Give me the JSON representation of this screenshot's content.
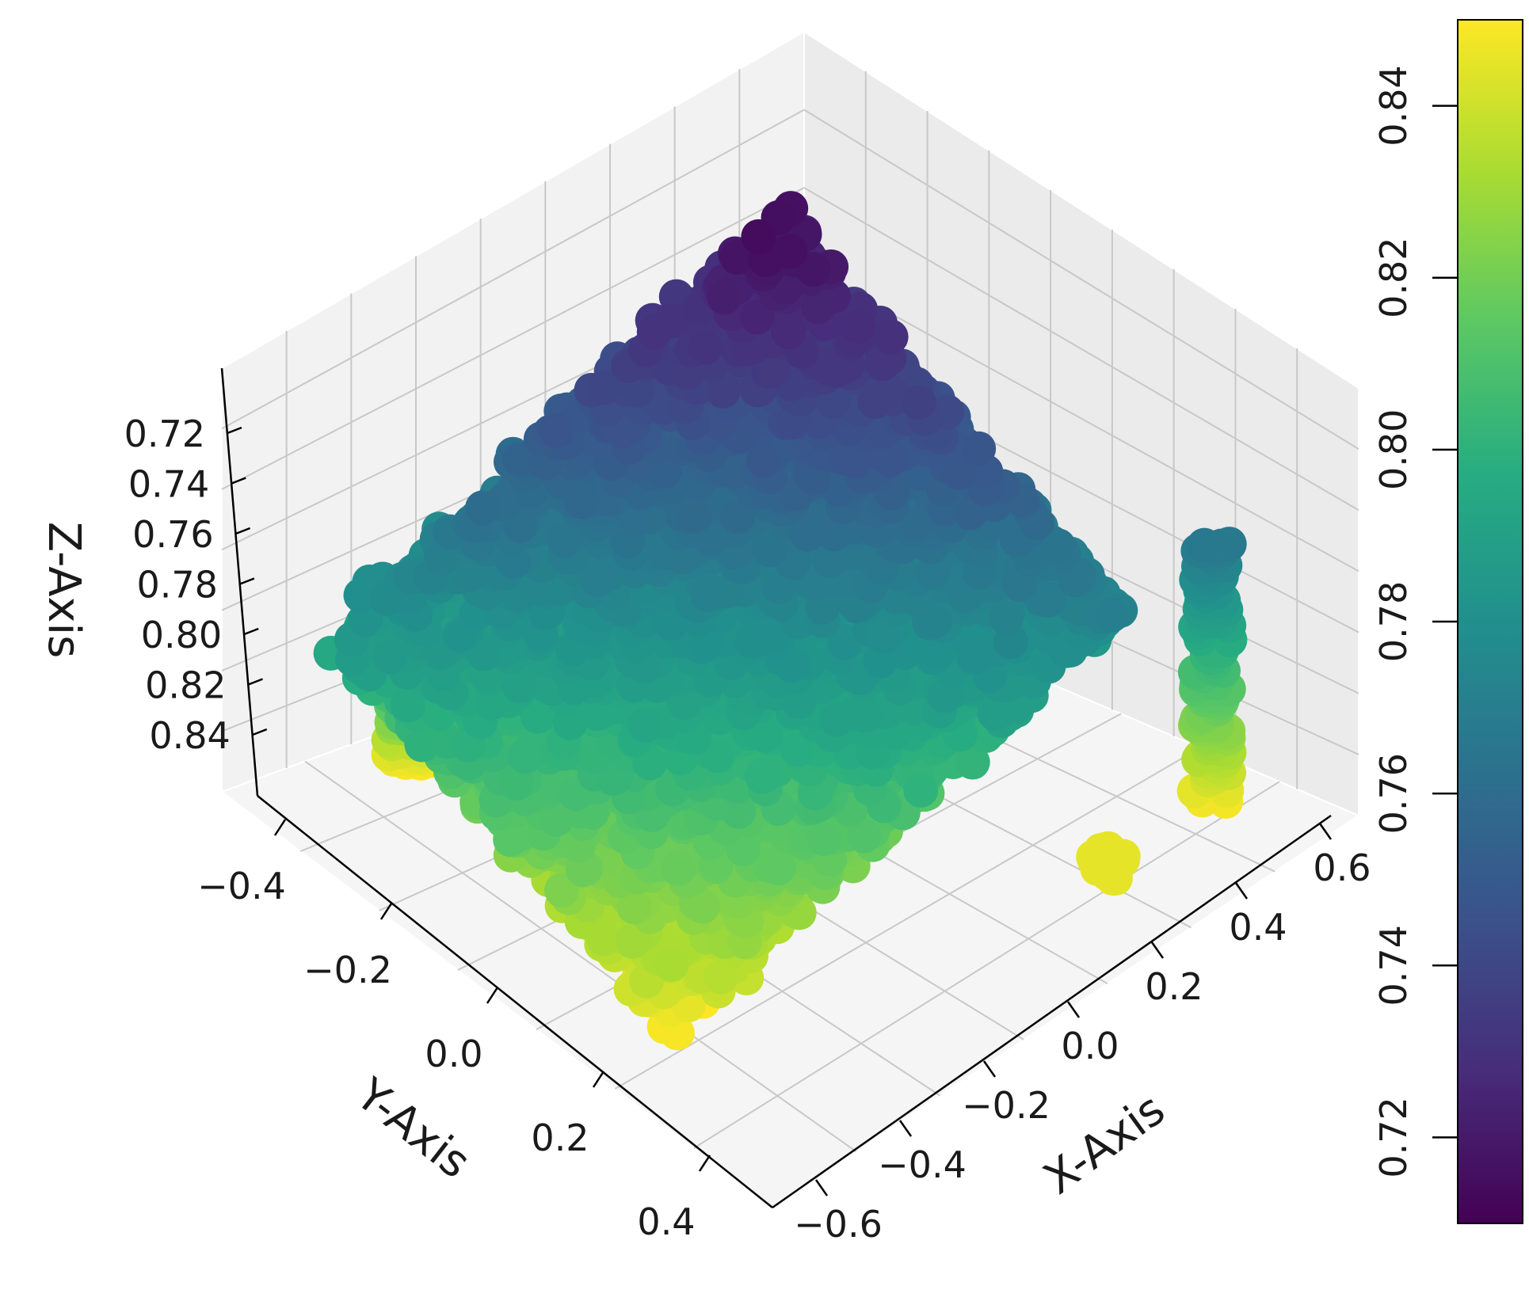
{
  "chart_data": {
    "type": "scatter",
    "title": "",
    "projection": "3d",
    "xlabel": "X-Axis",
    "ylabel": "Y-Axis",
    "zlabel": "Z-Axis",
    "xlim": [
      -0.6,
      0.6
    ],
    "ylim": [
      -0.5,
      0.45
    ],
    "zlim": [
      0.71,
      0.85
    ],
    "z_inverted": true,
    "grid": true,
    "x_ticks": [
      "−0.6",
      "−0.4",
      "−0.2",
      "0.0",
      "0.2",
      "0.4",
      "0.6"
    ],
    "y_ticks": [
      "−0.4",
      "−0.2",
      "0.0",
      "0.2",
      "0.4"
    ],
    "z_ticks": [
      "0.72",
      "0.74",
      "0.76",
      "0.78",
      "0.80",
      "0.82",
      "0.84"
    ],
    "colormap": "viridis",
    "colorbar": {
      "label": "",
      "range": [
        0.71,
        0.85
      ],
      "ticks": [
        "0.72",
        "0.74",
        "0.76",
        "0.78",
        "0.80",
        "0.82",
        "0.84"
      ],
      "orientation": "vertical"
    },
    "color_by": "z",
    "series": [
      {
        "description_of_shape": "dense point cloud forming a plateau surface; z ≈ 0.72 at the far corner (x≈0.5, y≈-0.45) rising to z ≈ 0.85 at the near corner (x≈-0.5, y≈0.45)",
        "points": [
          {
            "x": 0.45,
            "y": -0.45,
            "z": 0.72
          },
          {
            "x": 0.35,
            "y": -0.4,
            "z": 0.73
          },
          {
            "x": 0.4,
            "y": -0.3,
            "z": 0.735
          },
          {
            "x": 0.25,
            "y": -0.35,
            "z": 0.74
          },
          {
            "x": 0.3,
            "y": -0.2,
            "z": 0.745
          },
          {
            "x": 0.15,
            "y": -0.3,
            "z": 0.75
          },
          {
            "x": 0.2,
            "y": -0.1,
            "z": 0.755
          },
          {
            "x": 0.05,
            "y": -0.25,
            "z": 0.755
          },
          {
            "x": 0.1,
            "y": 0.0,
            "z": 0.76
          },
          {
            "x": -0.05,
            "y": -0.15,
            "z": 0.765
          },
          {
            "x": 0.0,
            "y": 0.05,
            "z": 0.77
          },
          {
            "x": -0.15,
            "y": -0.05,
            "z": 0.775
          },
          {
            "x": -0.1,
            "y": 0.15,
            "z": 0.78
          },
          {
            "x": -0.25,
            "y": 0.05,
            "z": 0.785
          },
          {
            "x": -0.2,
            "y": 0.25,
            "z": 0.795
          },
          {
            "x": -0.35,
            "y": 0.15,
            "z": 0.8
          },
          {
            "x": -0.3,
            "y": 0.35,
            "z": 0.81
          },
          {
            "x": -0.4,
            "y": 0.3,
            "z": 0.82
          },
          {
            "x": -0.45,
            "y": 0.4,
            "z": 0.835
          },
          {
            "x": -0.5,
            "y": 0.45,
            "z": 0.845
          },
          {
            "x": 0.45,
            "y": 0.35,
            "z": 0.77
          },
          {
            "x": 0.4,
            "y": 0.4,
            "z": 0.8
          },
          {
            "x": -0.55,
            "y": -0.35,
            "z": 0.79
          },
          {
            "x": -0.5,
            "y": -0.45,
            "z": 0.84
          }
        ]
      }
    ]
  }
}
